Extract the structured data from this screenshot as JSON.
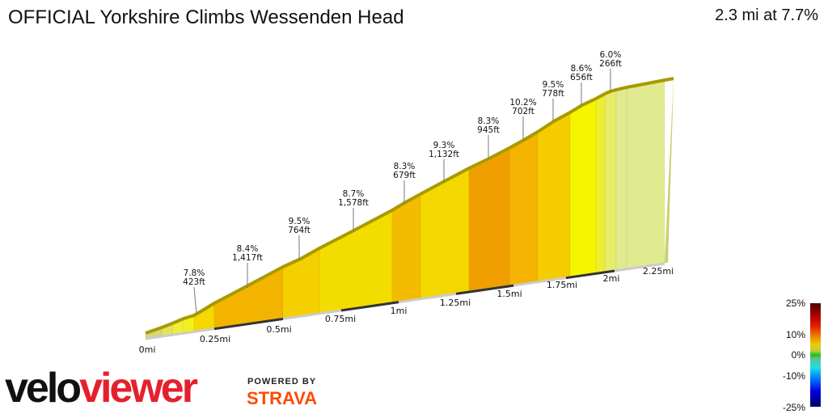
{
  "header": {
    "title": "OFFICIAL Yorkshire Climbs Wessenden Head",
    "summary": "2.3 mi at 7.7%"
  },
  "profile": {
    "annotations": [
      {
        "grade": "7.8%",
        "length": "423ft"
      },
      {
        "grade": "8.4%",
        "length": "1,417ft"
      },
      {
        "grade": "9.5%",
        "length": "764ft"
      },
      {
        "grade": "8.7%",
        "length": "1,578ft"
      },
      {
        "grade": "8.3%",
        "length": "679ft"
      },
      {
        "grade": "9.3%",
        "length": "1,132ft"
      },
      {
        "grade": "8.3%",
        "length": "945ft"
      },
      {
        "grade": "10.2%",
        "length": "702ft"
      },
      {
        "grade": "9.5%",
        "length": "778ft"
      },
      {
        "grade": "8.6%",
        "length": "656ft"
      },
      {
        "grade": "6.0%",
        "length": "266ft"
      }
    ],
    "distance_ticks": [
      "0mi",
      "0.25mi",
      "0.5mi",
      "0.75mi",
      "1mi",
      "1.25mi",
      "1.5mi",
      "1.75mi",
      "2mi",
      "2.25mi"
    ],
    "segment_colors": [
      "#d6d67a",
      "#e4e45a",
      "#eeee3a",
      "#f4f020",
      "#f5d800",
      "#f3b400",
      "#f5d000",
      "#f3dc00",
      "#f3bc00",
      "#f3d800",
      "#f09f00",
      "#f3b300",
      "#f5cc00",
      "#f5f500",
      "#eeee30",
      "#e6ec6a",
      "#e0eb90"
    ]
  },
  "legend": {
    "labels": [
      "25%",
      "10%",
      "0%",
      "-10%",
      "-25%"
    ]
  },
  "branding": {
    "logo_part1": "velo",
    "logo_part2": "viewer",
    "powered_by": "POWERED BY",
    "strava": "STRAVA"
  }
}
